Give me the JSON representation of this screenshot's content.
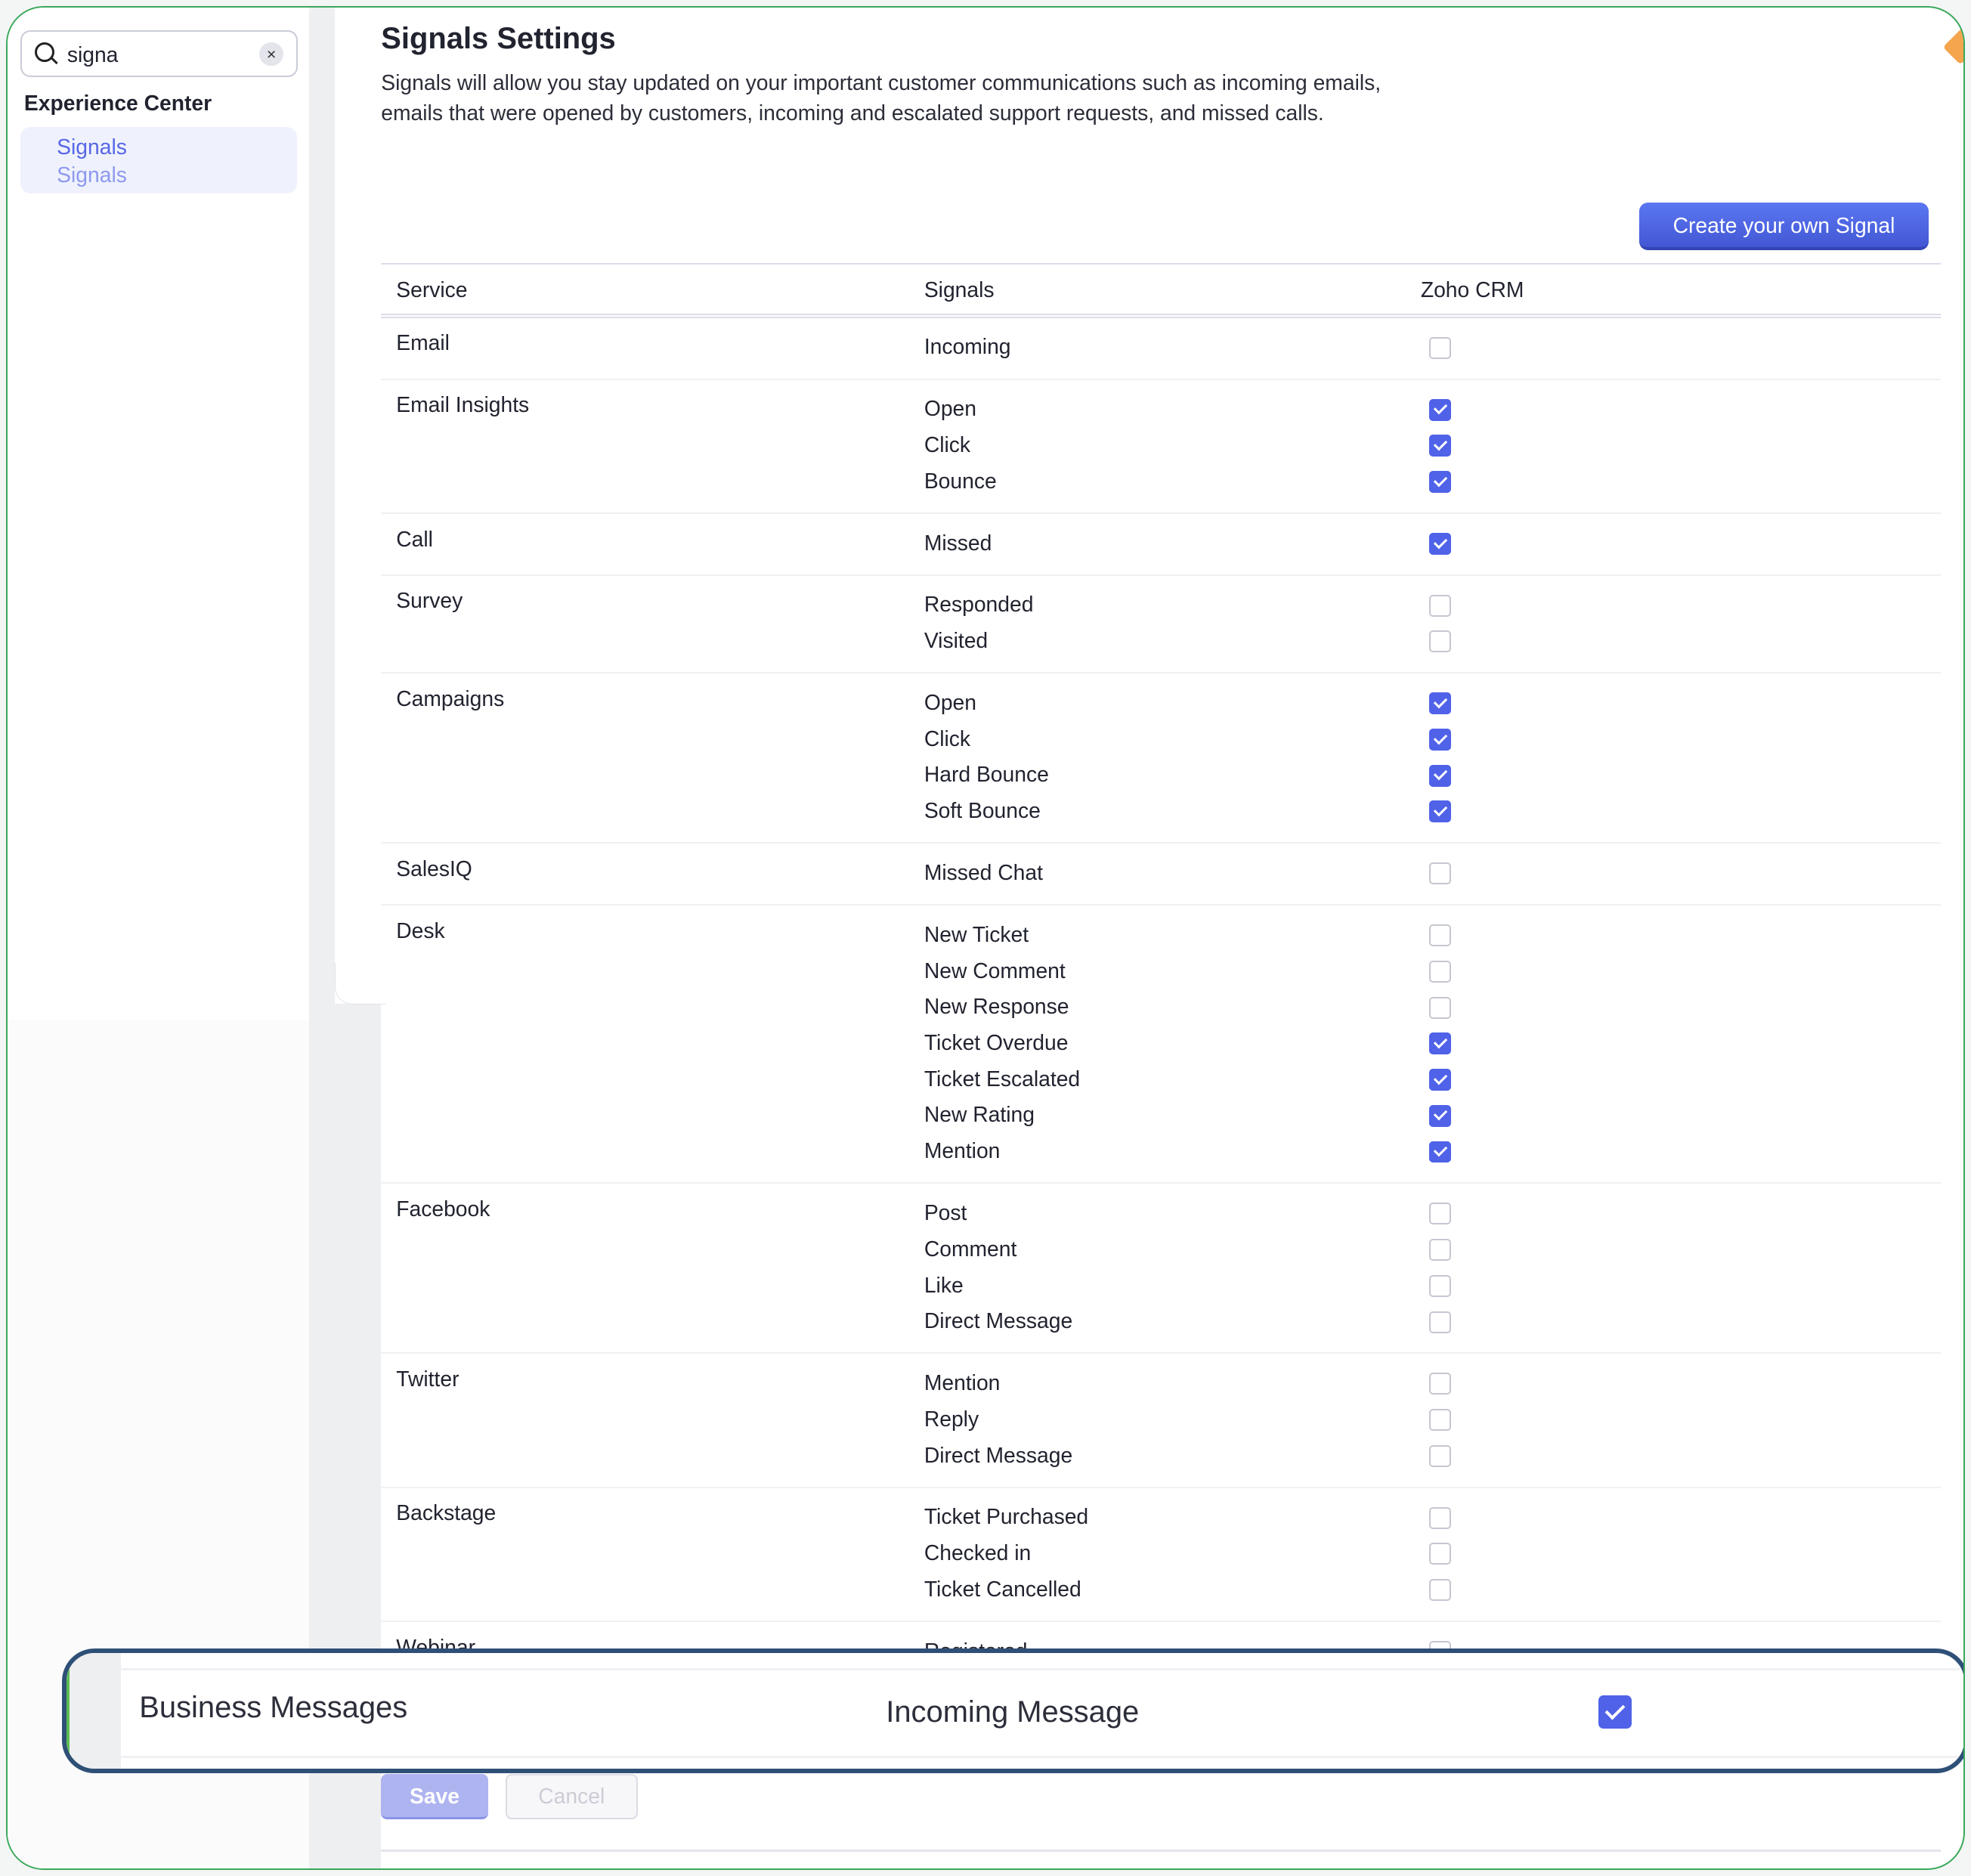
{
  "sidebar": {
    "search": {
      "value": "signa",
      "clear_icon": "×"
    },
    "section_title": "Experience Center",
    "selected_item": {
      "label": "Signals",
      "sublabel": "Signals"
    }
  },
  "page": {
    "title": "Signals Settings",
    "description": "Signals will allow you stay updated on your important customer communications such as incoming emails, emails that were opened by customers, incoming and escalated support requests, and missed calls.",
    "create_button": "Create your own Signal"
  },
  "table": {
    "headers": {
      "service": "Service",
      "signals": "Signals",
      "crm": "Zoho CRM"
    },
    "groups": [
      {
        "service": "Email",
        "signals": [
          {
            "name": "Incoming",
            "checked": false
          }
        ]
      },
      {
        "service": "Email Insights",
        "signals": [
          {
            "name": "Open",
            "checked": true
          },
          {
            "name": "Click",
            "checked": true
          },
          {
            "name": "Bounce",
            "checked": true
          }
        ]
      },
      {
        "service": "Call",
        "signals": [
          {
            "name": "Missed",
            "checked": true
          }
        ]
      },
      {
        "service": "Survey",
        "signals": [
          {
            "name": "Responded",
            "checked": false
          },
          {
            "name": "Visited",
            "checked": false
          }
        ]
      },
      {
        "service": "Campaigns",
        "signals": [
          {
            "name": "Open",
            "checked": true
          },
          {
            "name": "Click",
            "checked": true
          },
          {
            "name": "Hard Bounce",
            "checked": true
          },
          {
            "name": "Soft Bounce",
            "checked": true
          }
        ]
      },
      {
        "service": "SalesIQ",
        "signals": [
          {
            "name": "Missed Chat",
            "checked": false
          }
        ]
      },
      {
        "service": "Desk",
        "signals": [
          {
            "name": "New Ticket",
            "checked": false
          },
          {
            "name": "New Comment",
            "checked": false
          },
          {
            "name": "New Response",
            "checked": false
          },
          {
            "name": "Ticket Overdue",
            "checked": true
          },
          {
            "name": "Ticket Escalated",
            "checked": true
          },
          {
            "name": "New Rating",
            "checked": true
          },
          {
            "name": "Mention",
            "checked": true
          }
        ]
      },
      {
        "service": "Facebook",
        "signals": [
          {
            "name": "Post",
            "checked": false
          },
          {
            "name": "Comment",
            "checked": false
          },
          {
            "name": "Like",
            "checked": false
          },
          {
            "name": "Direct Message",
            "checked": false
          }
        ]
      },
      {
        "service": "Twitter",
        "signals": [
          {
            "name": "Mention",
            "checked": false
          },
          {
            "name": "Reply",
            "checked": false
          },
          {
            "name": "Direct Message",
            "checked": false
          }
        ]
      },
      {
        "service": "Backstage",
        "signals": [
          {
            "name": "Ticket Purchased",
            "checked": false
          },
          {
            "name": "Checked in",
            "checked": false
          },
          {
            "name": "Ticket Cancelled",
            "checked": false
          }
        ]
      },
      {
        "service": "Webinar",
        "signals": [
          {
            "name": "Registered",
            "checked": false
          }
        ]
      }
    ]
  },
  "highlight_row": {
    "service": "Business Messages",
    "signal": "Incoming Message",
    "checked": true
  },
  "footer": {
    "save": "Save",
    "cancel": "Cancel"
  },
  "colors": {
    "accent": "#4f62e8",
    "highlight_border": "#2e5077",
    "frame": "#3aa85a"
  }
}
